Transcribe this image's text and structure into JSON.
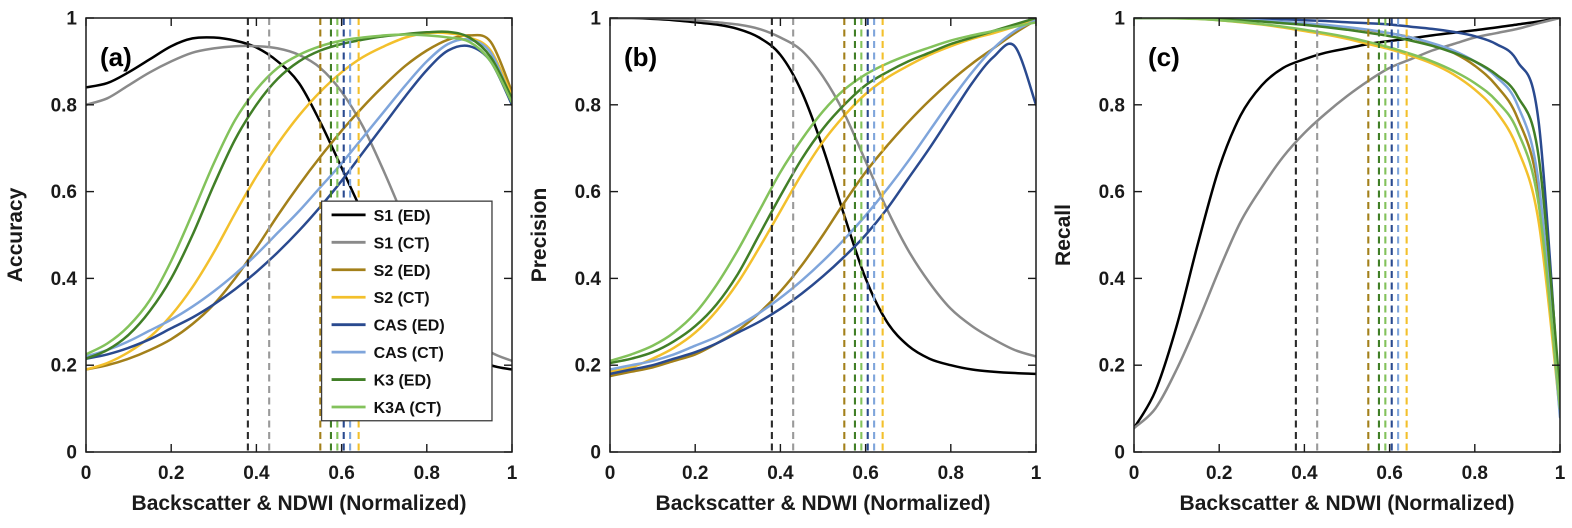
{
  "chart_data": [
    {
      "type": "line",
      "panel": "a",
      "title": "(a)",
      "ylabel": "Accuracy",
      "xlabel": "Backscatter & NDWI (Normalized)",
      "xlim": [
        0,
        1
      ],
      "ylim": [
        0,
        1
      ],
      "grid": false,
      "xticks": [
        0,
        0.2,
        0.4,
        0.6,
        0.8,
        1
      ],
      "xtick_labels": [
        "0",
        "0.2",
        "0.4",
        "0.6",
        "0.8",
        "1"
      ],
      "yticks": [
        0,
        0.2,
        0.4,
        0.6,
        0.8,
        1
      ],
      "ytick_labels": [
        "0",
        "0.2",
        "0.4",
        "0.6",
        "0.8",
        "1"
      ],
      "x": [
        0,
        0.05,
        0.1,
        0.15,
        0.2,
        0.25,
        0.3,
        0.35,
        0.4,
        0.45,
        0.5,
        0.55,
        0.6,
        0.65,
        0.7,
        0.75,
        0.8,
        0.85,
        0.9,
        0.95,
        1
      ],
      "series": [
        {
          "name": "S1 (ED)",
          "color": "#000000",
          "values": [
            0.84,
            0.85,
            0.875,
            0.905,
            0.935,
            0.953,
            0.955,
            0.948,
            0.932,
            0.9,
            0.85,
            0.76,
            0.655,
            0.55,
            0.46,
            0.38,
            0.31,
            0.26,
            0.225,
            0.2,
            0.19
          ]
        },
        {
          "name": "S1 (CT)",
          "color": "#8a8a8a",
          "values": [
            0.8,
            0.815,
            0.845,
            0.875,
            0.9,
            0.92,
            0.93,
            0.935,
            0.935,
            0.93,
            0.915,
            0.885,
            0.83,
            0.75,
            0.645,
            0.53,
            0.42,
            0.33,
            0.27,
            0.23,
            0.21
          ]
        },
        {
          "name": "S2 (ED)",
          "color": "#a3801a",
          "values": [
            0.19,
            0.2,
            0.215,
            0.235,
            0.26,
            0.295,
            0.34,
            0.4,
            0.47,
            0.545,
            0.615,
            0.68,
            0.74,
            0.795,
            0.845,
            0.89,
            0.925,
            0.95,
            0.96,
            0.945,
            0.83
          ]
        },
        {
          "name": "S2 (CT)",
          "color": "#f3c02c",
          "values": [
            0.19,
            0.205,
            0.23,
            0.265,
            0.315,
            0.38,
            0.46,
            0.55,
            0.635,
            0.71,
            0.775,
            0.83,
            0.875,
            0.91,
            0.935,
            0.955,
            0.965,
            0.965,
            0.955,
            0.925,
            0.82
          ]
        },
        {
          "name": "CAS (ED)",
          "color": "#2a4a8f",
          "values": [
            0.215,
            0.225,
            0.24,
            0.26,
            0.285,
            0.31,
            0.34,
            0.375,
            0.415,
            0.46,
            0.51,
            0.565,
            0.625,
            0.69,
            0.755,
            0.82,
            0.88,
            0.925,
            0.935,
            0.9,
            0.8
          ]
        },
        {
          "name": "CAS (CT)",
          "color": "#7fa5db",
          "values": [
            0.22,
            0.235,
            0.255,
            0.28,
            0.305,
            0.335,
            0.37,
            0.41,
            0.455,
            0.505,
            0.555,
            0.61,
            0.665,
            0.725,
            0.785,
            0.845,
            0.9,
            0.94,
            0.95,
            0.92,
            0.81
          ]
        },
        {
          "name": "K3 (ED)",
          "color": "#417f27",
          "values": [
            0.215,
            0.235,
            0.27,
            0.325,
            0.4,
            0.5,
            0.615,
            0.72,
            0.8,
            0.86,
            0.9,
            0.925,
            0.94,
            0.95,
            0.958,
            0.963,
            0.967,
            0.968,
            0.955,
            0.91,
            0.815
          ]
        },
        {
          "name": "K3A (CT)",
          "color": "#83c25b",
          "values": [
            0.225,
            0.25,
            0.29,
            0.35,
            0.44,
            0.55,
            0.665,
            0.765,
            0.835,
            0.885,
            0.915,
            0.935,
            0.948,
            0.955,
            0.96,
            0.962,
            0.96,
            0.955,
            0.945,
            0.9,
            0.805
          ]
        }
      ],
      "vlines": [
        {
          "x": 0.38,
          "color": "#2b2b2b"
        },
        {
          "x": 0.43,
          "color": "#9a9a9a"
        },
        {
          "x": 0.55,
          "color": "#a3801a"
        },
        {
          "x": 0.575,
          "color": "#417f27"
        },
        {
          "x": 0.59,
          "color": "#83c25b"
        },
        {
          "x": 0.605,
          "color": "#2a4a8f"
        },
        {
          "x": 0.62,
          "color": "#7fa5db"
        },
        {
          "x": 0.64,
          "color": "#f3c02c"
        }
      ],
      "legend": {
        "show": true,
        "position": "lower right",
        "entries": [
          "S1 (ED)",
          "S1 (CT)",
          "S2 (ED)",
          "S2 (CT)",
          "CAS (ED)",
          "CAS (CT)",
          "K3 (ED)",
          "K3A (CT)"
        ]
      }
    },
    {
      "type": "line",
      "panel": "b",
      "title": "(b)",
      "ylabel": "Precision",
      "xlabel": "Backscatter & NDWI (Normalized)",
      "xlim": [
        0,
        1
      ],
      "ylim": [
        0,
        1
      ],
      "grid": false,
      "xticks": [
        0,
        0.2,
        0.4,
        0.6,
        0.8,
        1
      ],
      "xtick_labels": [
        "0",
        "0.2",
        "0.4",
        "0.6",
        "0.8",
        "1"
      ],
      "yticks": [
        0,
        0.2,
        0.4,
        0.6,
        0.8,
        1
      ],
      "ytick_labels": [
        "0",
        "0.2",
        "0.4",
        "0.6",
        "0.8",
        "1"
      ],
      "x": [
        0,
        0.05,
        0.1,
        0.15,
        0.2,
        0.25,
        0.3,
        0.35,
        0.4,
        0.45,
        0.5,
        0.55,
        0.6,
        0.65,
        0.7,
        0.75,
        0.8,
        0.85,
        0.9,
        0.95,
        1
      ],
      "series": [
        {
          "name": "S1 (ED)",
          "color": "#000000",
          "values": [
            1.0,
            1.0,
            0.998,
            0.995,
            0.99,
            0.985,
            0.975,
            0.955,
            0.915,
            0.83,
            0.7,
            0.545,
            0.4,
            0.3,
            0.245,
            0.215,
            0.2,
            0.19,
            0.185,
            0.182,
            0.18
          ]
        },
        {
          "name": "S1 (CT)",
          "color": "#8a8a8a",
          "values": [
            1.0,
            1.0,
            1.0,
            0.998,
            0.995,
            0.99,
            0.985,
            0.975,
            0.955,
            0.925,
            0.865,
            0.78,
            0.67,
            0.56,
            0.465,
            0.39,
            0.33,
            0.29,
            0.26,
            0.235,
            0.22
          ]
        },
        {
          "name": "S2 (ED)",
          "color": "#a3801a",
          "values": [
            0.175,
            0.185,
            0.195,
            0.21,
            0.225,
            0.25,
            0.28,
            0.32,
            0.37,
            0.43,
            0.5,
            0.575,
            0.645,
            0.705,
            0.76,
            0.81,
            0.855,
            0.895,
            0.93,
            0.965,
            0.995
          ]
        },
        {
          "name": "S2 (CT)",
          "color": "#f3c02c",
          "values": [
            0.185,
            0.195,
            0.215,
            0.24,
            0.275,
            0.325,
            0.39,
            0.47,
            0.555,
            0.64,
            0.715,
            0.775,
            0.825,
            0.862,
            0.89,
            0.915,
            0.935,
            0.952,
            0.965,
            0.98,
            0.995
          ]
        },
        {
          "name": "CAS (ED)",
          "color": "#2a4a8f",
          "values": [
            0.18,
            0.19,
            0.2,
            0.215,
            0.23,
            0.25,
            0.275,
            0.3,
            0.33,
            0.365,
            0.405,
            0.45,
            0.5,
            0.56,
            0.63,
            0.7,
            0.775,
            0.85,
            0.91,
            0.935,
            0.8
          ]
        },
        {
          "name": "CAS (CT)",
          "color": "#7fa5db",
          "values": [
            0.19,
            0.2,
            0.21,
            0.225,
            0.245,
            0.265,
            0.29,
            0.32,
            0.355,
            0.395,
            0.44,
            0.49,
            0.545,
            0.605,
            0.67,
            0.74,
            0.81,
            0.875,
            0.93,
            0.97,
            0.995
          ]
        },
        {
          "name": "K3 (ED)",
          "color": "#417f27",
          "values": [
            0.205,
            0.215,
            0.23,
            0.255,
            0.29,
            0.34,
            0.41,
            0.5,
            0.59,
            0.675,
            0.745,
            0.8,
            0.845,
            0.875,
            0.9,
            0.92,
            0.94,
            0.955,
            0.97,
            0.985,
            1.0
          ]
        },
        {
          "name": "K3A (CT)",
          "color": "#83c25b",
          "values": [
            0.21,
            0.225,
            0.245,
            0.275,
            0.32,
            0.385,
            0.465,
            0.555,
            0.645,
            0.72,
            0.785,
            0.835,
            0.87,
            0.895,
            0.915,
            0.932,
            0.948,
            0.96,
            0.97,
            0.98,
            0.99
          ]
        }
      ],
      "vlines": [
        {
          "x": 0.38,
          "color": "#2b2b2b"
        },
        {
          "x": 0.43,
          "color": "#9a9a9a"
        },
        {
          "x": 0.55,
          "color": "#a3801a"
        },
        {
          "x": 0.575,
          "color": "#417f27"
        },
        {
          "x": 0.59,
          "color": "#83c25b"
        },
        {
          "x": 0.605,
          "color": "#2a4a8f"
        },
        {
          "x": 0.62,
          "color": "#7fa5db"
        },
        {
          "x": 0.64,
          "color": "#f3c02c"
        }
      ],
      "legend": {
        "show": false
      }
    },
    {
      "type": "line",
      "panel": "c",
      "title": "(c)",
      "ylabel": "Recall",
      "xlabel": "Backscatter & NDWI (Normalized)",
      "xlim": [
        0,
        1
      ],
      "ylim": [
        0,
        1
      ],
      "grid": false,
      "xticks": [
        0,
        0.2,
        0.4,
        0.6,
        0.8,
        1
      ],
      "xtick_labels": [
        "0",
        "0.2",
        "0.4",
        "0.6",
        "0.8",
        "1"
      ],
      "yticks": [
        0,
        0.2,
        0.4,
        0.6,
        0.8,
        1
      ],
      "ytick_labels": [
        "0",
        "0.2",
        "0.4",
        "0.6",
        "0.8",
        "1"
      ],
      "x": [
        0,
        0.05,
        0.1,
        0.15,
        0.2,
        0.25,
        0.3,
        0.35,
        0.4,
        0.45,
        0.5,
        0.55,
        0.6,
        0.65,
        0.7,
        0.75,
        0.8,
        0.85,
        0.9,
        0.95,
        1
      ],
      "series": [
        {
          "name": "S1 (ED)",
          "color": "#000000",
          "values": [
            0.055,
            0.14,
            0.29,
            0.48,
            0.655,
            0.775,
            0.845,
            0.885,
            0.905,
            0.92,
            0.93,
            0.94,
            0.947,
            0.953,
            0.96,
            0.966,
            0.972,
            0.978,
            0.985,
            0.992,
            1.0
          ]
        },
        {
          "name": "S1 (CT)",
          "color": "#8a8a8a",
          "values": [
            0.055,
            0.1,
            0.19,
            0.3,
            0.42,
            0.53,
            0.61,
            0.68,
            0.735,
            0.78,
            0.82,
            0.855,
            0.885,
            0.905,
            0.925,
            0.94,
            0.955,
            0.965,
            0.975,
            0.988,
            1.0
          ]
        },
        {
          "name": "S2 (ED)",
          "color": "#a3801a",
          "values": [
            1.0,
            1.0,
            1.0,
            1.0,
            0.998,
            0.996,
            0.993,
            0.99,
            0.987,
            0.983,
            0.978,
            0.972,
            0.965,
            0.955,
            0.94,
            0.92,
            0.89,
            0.845,
            0.77,
            0.6,
            0.12
          ]
        },
        {
          "name": "S2 (CT)",
          "color": "#f3c02c",
          "values": [
            1.0,
            1.0,
            1.0,
            0.998,
            0.995,
            0.99,
            0.985,
            0.978,
            0.97,
            0.962,
            0.952,
            0.94,
            0.928,
            0.913,
            0.895,
            0.87,
            0.835,
            0.785,
            0.7,
            0.53,
            0.09
          ]
        },
        {
          "name": "CAS (ED)",
          "color": "#2a4a8f",
          "values": [
            1.0,
            1.0,
            1.0,
            1.0,
            1.0,
            0.999,
            0.998,
            0.997,
            0.995,
            0.993,
            0.99,
            0.988,
            0.985,
            0.98,
            0.975,
            0.968,
            0.958,
            0.94,
            0.9,
            0.76,
            0.1
          ]
        },
        {
          "name": "CAS (CT)",
          "color": "#7fa5db",
          "values": [
            1.0,
            1.0,
            1.0,
            0.999,
            0.998,
            0.996,
            0.994,
            0.991,
            0.988,
            0.984,
            0.979,
            0.973,
            0.965,
            0.955,
            0.942,
            0.925,
            0.9,
            0.865,
            0.8,
            0.62,
            0.08
          ]
        },
        {
          "name": "K3 (ED)",
          "color": "#417f27",
          "values": [
            1.0,
            1.0,
            1.0,
            0.999,
            0.997,
            0.995,
            0.992,
            0.988,
            0.984,
            0.979,
            0.973,
            0.966,
            0.958,
            0.948,
            0.936,
            0.92,
            0.9,
            0.87,
            0.82,
            0.68,
            0.14
          ]
        },
        {
          "name": "K3A (CT)",
          "color": "#83c25b",
          "values": [
            1.0,
            1.0,
            0.999,
            0.998,
            0.995,
            0.991,
            0.986,
            0.98,
            0.973,
            0.965,
            0.956,
            0.945,
            0.932,
            0.917,
            0.9,
            0.878,
            0.85,
            0.81,
            0.74,
            0.57,
            0.1
          ]
        }
      ],
      "vlines": [
        {
          "x": 0.38,
          "color": "#2b2b2b"
        },
        {
          "x": 0.43,
          "color": "#9a9a9a"
        },
        {
          "x": 0.55,
          "color": "#a3801a"
        },
        {
          "x": 0.575,
          "color": "#417f27"
        },
        {
          "x": 0.59,
          "color": "#83c25b"
        },
        {
          "x": 0.605,
          "color": "#2a4a8f"
        },
        {
          "x": 0.62,
          "color": "#7fa5db"
        },
        {
          "x": 0.64,
          "color": "#f3c02c"
        }
      ],
      "legend": {
        "show": false
      }
    }
  ]
}
